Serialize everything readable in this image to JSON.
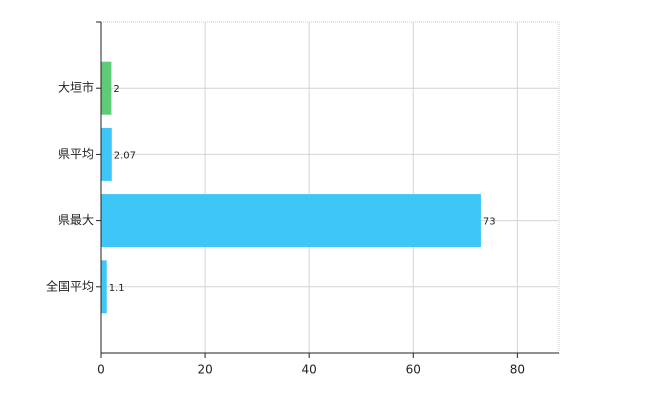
{
  "chart_data": {
    "type": "bar",
    "orientation": "horizontal",
    "categories": [
      "大垣市",
      "県平均",
      "県最大",
      "全国平均"
    ],
    "values": [
      2,
      2.07,
      73,
      1.1
    ],
    "colors": [
      "#5fcb78",
      "#3dc6f6",
      "#3dc6f6",
      "#3dc6f6"
    ],
    "xlim": [
      0,
      88
    ],
    "xticks": [
      0,
      20,
      40,
      60,
      80
    ],
    "grid": true
  }
}
